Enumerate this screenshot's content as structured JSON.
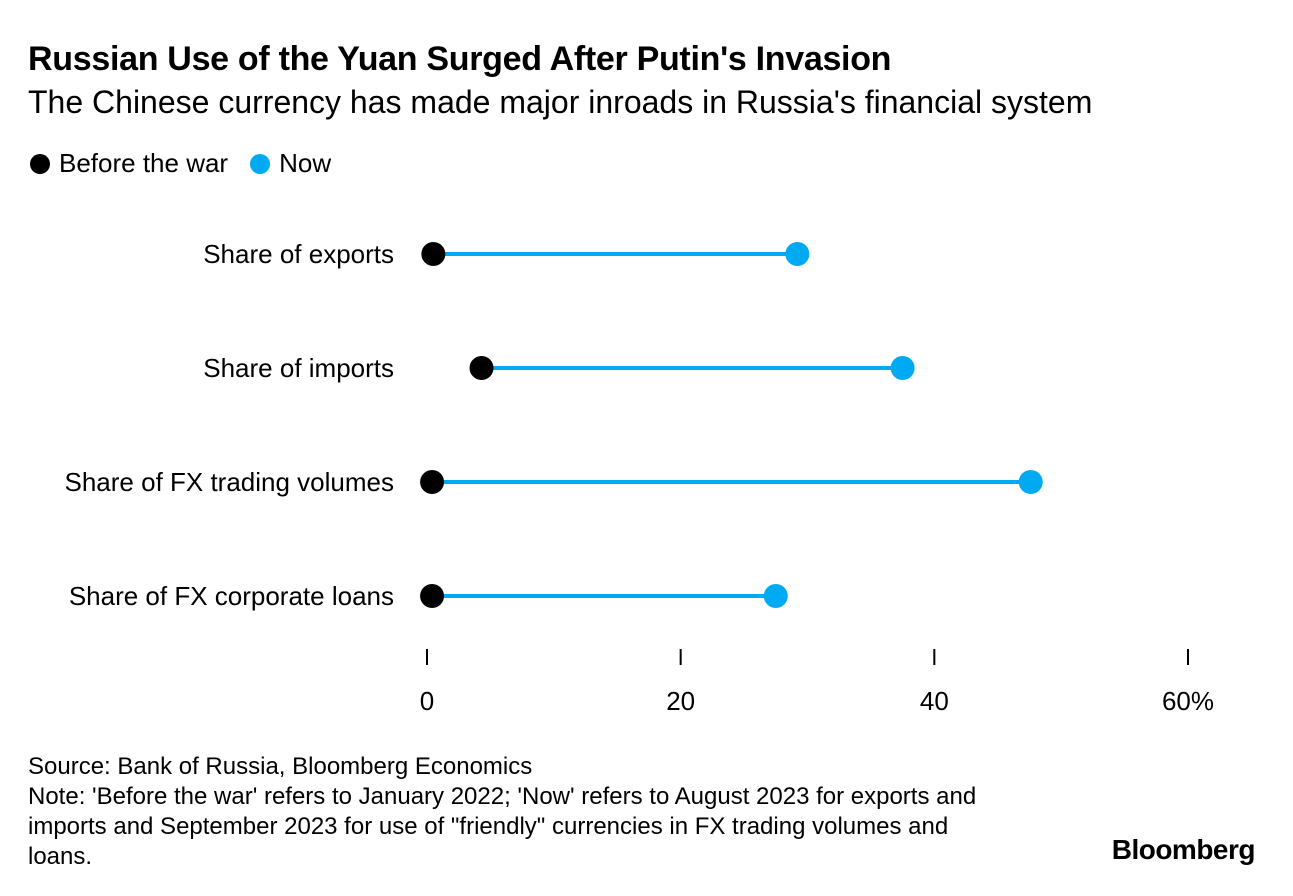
{
  "title": "Russian Use of the Yuan Surged After Putin's Invasion",
  "subtitle": "The Chinese currency has made major inroads in Russia's financial system",
  "colors": {
    "before": "#000000",
    "now": "#00aaf2",
    "connector": "#00aaf2",
    "tick": "#000000"
  },
  "chart_data": {
    "type": "dumbbell",
    "series": [
      {
        "name": "Before the war",
        "color": "#000000"
      },
      {
        "name": "Now",
        "color": "#00aaf2"
      }
    ],
    "categories": [
      "Share of exports",
      "Share of imports",
      "Share of FX trading volumes",
      "Share of FX corporate loans"
    ],
    "before": [
      0.5,
      4.3,
      0.4,
      0.4
    ],
    "now": [
      29.2,
      37.5,
      47.6,
      27.5
    ],
    "xlim": [
      0,
      60
    ],
    "xticks": [
      0,
      20,
      40,
      60
    ],
    "xtick_labels": [
      "0",
      "20",
      "40",
      "60%"
    ],
    "legend_position": "top-left",
    "grid": false
  },
  "footer": {
    "source": "Source: Bank of Russia, Bloomberg Economics",
    "note": "Note: 'Before the war' refers to January 2022; 'Now' refers to August 2023 for exports and imports and September 2023 for use of \"friendly\" currencies in FX trading volumes and loans."
  },
  "brand": "Bloomberg"
}
